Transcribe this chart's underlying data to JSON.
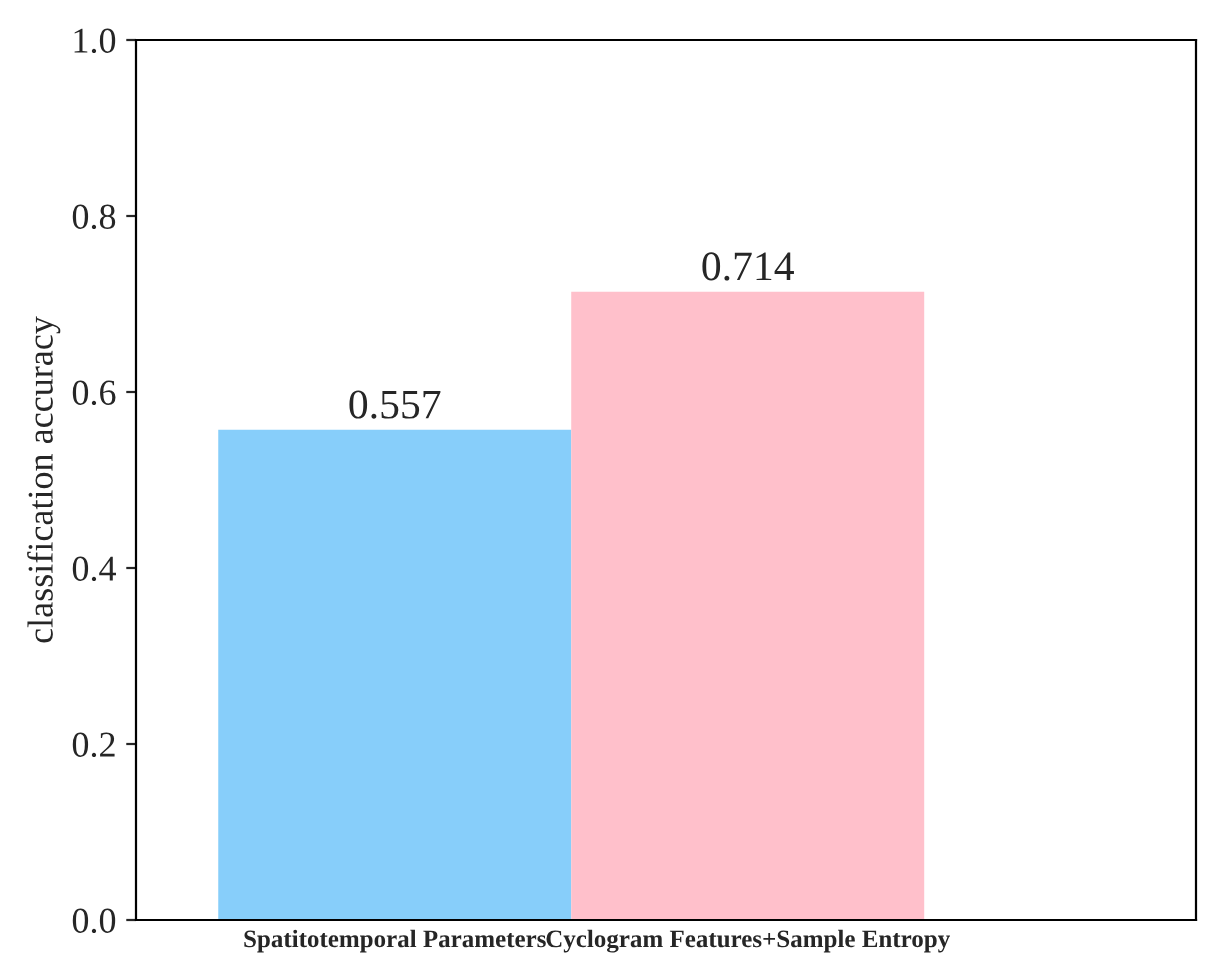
{
  "chart_data": {
    "type": "bar",
    "ylabel": "classification accuracy",
    "categories": [
      "Spatitotemporal Parameters",
      "Cyclogram Features+Sample Entropy"
    ],
    "values": [
      0.557,
      0.714
    ],
    "colors": [
      "#87cefa",
      "#ffc0cb"
    ],
    "ylim": [
      0.0,
      1.0
    ],
    "yticks": [
      {
        "value": 0.0,
        "label": "0.0"
      },
      {
        "value": 0.2,
        "label": "0.2"
      },
      {
        "value": 0.4,
        "label": "0.4"
      },
      {
        "value": 0.6,
        "label": "0.6"
      },
      {
        "value": 0.8,
        "label": "0.8"
      },
      {
        "value": 1.0,
        "label": "1.0"
      }
    ],
    "data_labels": true,
    "grid": false,
    "legend": false
  }
}
